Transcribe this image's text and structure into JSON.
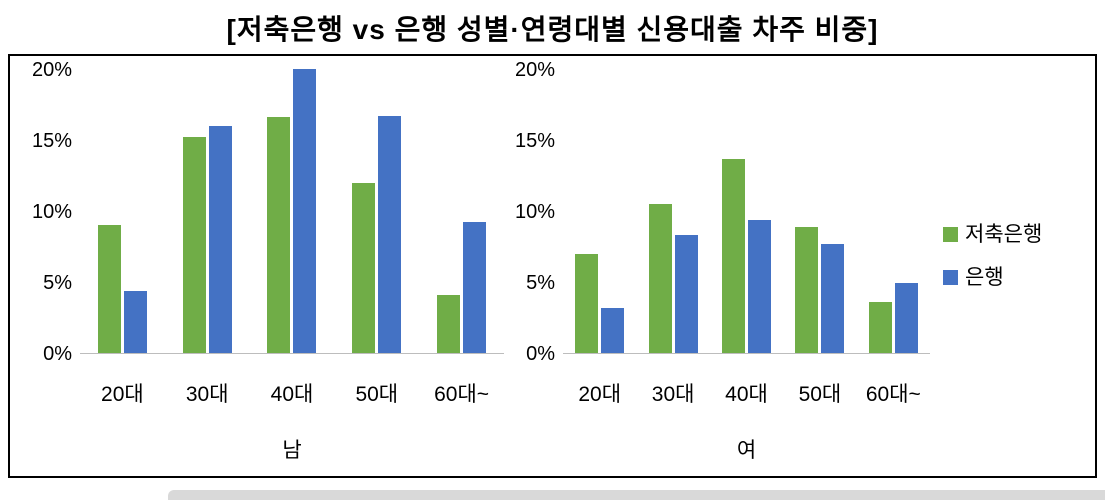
{
  "title": "[저축은행 vs 은행 성별·연령대별 신용대출 차주 비중]",
  "legend": [
    {
      "label": "저축은행",
      "color": "#70AD47"
    },
    {
      "label": "은행",
      "color": "#4472C4"
    }
  ],
  "chart_data": {
    "type": "bar",
    "title": "[저축은행 vs 은행 성별·연령대별 신용대출 차주 비중]",
    "categories": [
      "20대",
      "30대",
      "40대",
      "50대",
      "60대~"
    ],
    "groups": [
      {
        "label": "남",
        "series": [
          {
            "name": "저축은행",
            "color": "#70AD47",
            "values": [
              9.0,
              15.2,
              16.6,
              12.0,
              4.1
            ]
          },
          {
            "name": "은행",
            "color": "#4472C4",
            "values": [
              4.4,
              16.0,
              20.0,
              16.7,
              9.2
            ]
          }
        ]
      },
      {
        "label": "여",
        "series": [
          {
            "name": "저축은행",
            "color": "#70AD47",
            "values": [
              7.0,
              10.5,
              13.7,
              8.9,
              3.6
            ]
          },
          {
            "name": "은행",
            "color": "#4472C4",
            "values": [
              3.2,
              8.3,
              9.4,
              7.7,
              4.9
            ]
          }
        ]
      }
    ],
    "ylim": [
      0,
      20
    ],
    "yticks": [
      "0%",
      "5%",
      "10%",
      "15%",
      "20%"
    ],
    "ytick_values": [
      0,
      5,
      10,
      15,
      20
    ],
    "legend_position": "right",
    "grid": false
  }
}
